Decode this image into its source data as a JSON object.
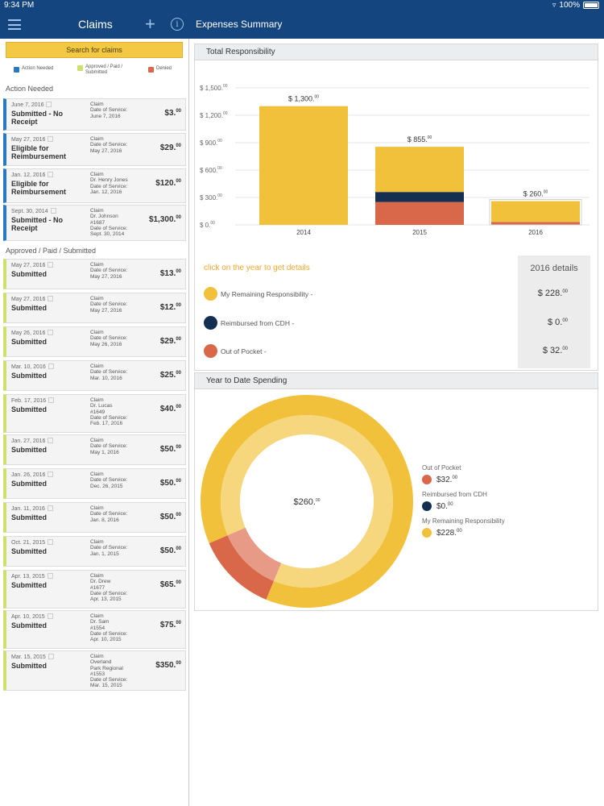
{
  "status": {
    "time": "9:34 PM",
    "battery": "100%"
  },
  "nav": {
    "title": "Claims",
    "right_title": "Expenses Summary"
  },
  "sidebar": {
    "search_label": "Search for claims",
    "legend": {
      "action": "Action Needed",
      "approved": "Approved / Paid / Submitted",
      "denied": "Denied"
    },
    "action_title": "Action Needed",
    "approved_title": "Approved / Paid / Submitted",
    "action_items": [
      {
        "date": "June 7, 2016",
        "status": "Submitted - No Receipt",
        "details": [
          "Claim",
          "Date of Service:",
          "June 7, 2016"
        ],
        "amount": "$3."
      },
      {
        "date": "May 27, 2016",
        "status": "Eligible for Reimbursement",
        "details": [
          "Claim",
          "Date of Service:",
          "May 27, 2016"
        ],
        "amount": "$29."
      },
      {
        "date": "Jan. 12, 2016",
        "status": "Eligible for Reimbursement",
        "details": [
          "Claim",
          "Dr. Henry Jones",
          "Date of Service:",
          "Jan. 12, 2016"
        ],
        "amount": "$120."
      },
      {
        "date": "Sept. 30, 2014",
        "status": "Submitted - No Receipt",
        "details": [
          "Claim",
          "Dr. Johnson",
          "#1687",
          "Date of Service:",
          "Sept. 30, 2014"
        ],
        "amount": "$1,300."
      }
    ],
    "approved_items": [
      {
        "date": "May 27, 2016",
        "status": "Submitted",
        "details": [
          "Claim",
          "Date of Service:",
          "May 27, 2016"
        ],
        "amount": "$13."
      },
      {
        "date": "May 27, 2016",
        "status": "Submitted",
        "details": [
          "Claim",
          "Date of Service:",
          "May 27, 2016"
        ],
        "amount": "$12."
      },
      {
        "date": "May 26, 2016",
        "status": "Submitted",
        "details": [
          "Claim",
          "Date of Service:",
          "May 26, 2016"
        ],
        "amount": "$29."
      },
      {
        "date": "Mar. 10, 2016",
        "status": "Submitted",
        "details": [
          "Claim",
          "Date of Service:",
          "Mar. 10, 2016"
        ],
        "amount": "$25."
      },
      {
        "date": "Feb. 17, 2016",
        "status": "Submitted",
        "details": [
          "Claim",
          "Dr. Lucas",
          "#1649",
          "Date of Service:",
          "Feb. 17, 2016"
        ],
        "amount": "$40."
      },
      {
        "date": "Jan. 27, 2016",
        "status": "Submitted",
        "details": [
          "Claim",
          "Date of Service:",
          "May 1, 2016"
        ],
        "amount": "$50."
      },
      {
        "date": "Jan. 26, 2016",
        "status": "Submitted",
        "details": [
          "Claim",
          "Date of Service:",
          "Dec. 26, 2015"
        ],
        "amount": "$50."
      },
      {
        "date": "Jan. 11, 2016",
        "status": "Submitted",
        "details": [
          "Claim",
          "Date of Service:",
          "Jan. 8, 2016"
        ],
        "amount": "$50."
      },
      {
        "date": "Oct. 21, 2015",
        "status": "Submitted",
        "details": [
          "Claim",
          "Date of Service:",
          "Jan. 1, 2015"
        ],
        "amount": "$50."
      },
      {
        "date": "Apr. 13, 2015",
        "status": "Submitted",
        "details": [
          "Claim",
          "Dr. Drew",
          "#1677",
          "Date of Service:",
          "Apr. 13, 2015"
        ],
        "amount": "$65."
      },
      {
        "date": "Apr. 10, 2015",
        "status": "Submitted",
        "details": [
          "Claim",
          "Dr. Sam",
          "#1554",
          "Date of Service:",
          "Apr. 10, 2015"
        ],
        "amount": "$75."
      },
      {
        "date": "Mar. 15, 2015",
        "status": "Submitted",
        "details": [
          "Claim",
          "Overland",
          "Park Regional",
          "#1553",
          "Date of Service:",
          "Mar. 15, 2015"
        ],
        "amount": "$350."
      }
    ]
  },
  "total_panel": {
    "title": "Total Responsibility",
    "hint": "click on the year to get details",
    "details_title": "2016 details",
    "rows": [
      {
        "label": "My Remaining Responsibility -",
        "value": "$ 228.",
        "color": "#f2c13b"
      },
      {
        "label": "Reimbursed from CDH -",
        "value": "$ 0.",
        "color": "#142f4f"
      },
      {
        "label": "Out of Pocket -",
        "value": "$ 32.",
        "color": "#d9684b"
      }
    ]
  },
  "ytd_panel": {
    "title": "Year to Date Spending",
    "center_label": "$260.",
    "legend": [
      {
        "label": "Out of Pocket",
        "value": "$32.",
        "color": "#d9684b"
      },
      {
        "label": "Reimbursed from CDH",
        "value": "$0.",
        "color": "#142f4f"
      },
      {
        "label": "My Remaining Responsibility",
        "value": "$228.",
        "color": "#f2c13b"
      }
    ]
  },
  "colors": {
    "remaining": "#f2c13b",
    "cdh": "#142f4f",
    "pocket": "#d9684b",
    "nav": "#14457f"
  },
  "chart_data": [
    {
      "type": "bar",
      "stacked": true,
      "categories": [
        "2014",
        "2015",
        "2016"
      ],
      "series": [
        {
          "name": "Out of Pocket",
          "values": [
            0,
            250,
            32
          ]
        },
        {
          "name": "Reimbursed from CDH",
          "values": [
            0,
            110,
            0
          ]
        },
        {
          "name": "My Remaining Responsibility",
          "values": [
            1300,
            495,
            228
          ]
        }
      ],
      "totals": [
        "$ 1,300.",
        "$ 855.",
        "$ 260."
      ],
      "yticks": [
        "$ 1,500.",
        "$ 1,200.",
        "$ 900.",
        "$ 600.",
        "$ 300.",
        "$ 0."
      ],
      "ytick_values": [
        1500,
        1200,
        900,
        600,
        300,
        0
      ],
      "ylim": [
        0,
        1500
      ],
      "grid": true
    },
    {
      "type": "pie",
      "donut": true,
      "labels": [
        "Out of Pocket",
        "Reimbursed from CDH",
        "My Remaining Responsibility"
      ],
      "values": [
        32,
        0,
        228
      ]
    }
  ]
}
